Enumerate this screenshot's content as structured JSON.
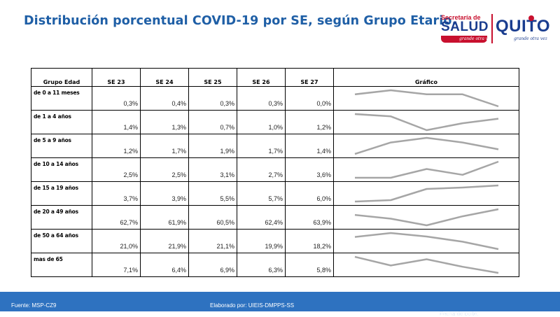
{
  "title": "Distribución porcentual COVID-19 por SE, según Grupo Etario.",
  "logos": {
    "salud_top": "Secretaría de",
    "salud_main": "SALUD",
    "salud_tag": "grande otra vez",
    "quito_main": "QUITO",
    "quito_tag": "grande otra vez"
  },
  "table": {
    "headers": [
      "Grupo Edad",
      "SE 23",
      "SE 24",
      "SE 25",
      "SE 26",
      "SE 27",
      "Gráfico"
    ],
    "rows": [
      {
        "label": "de 0 a 11 meses",
        "values": [
          "0,3%",
          "0,4%",
          "0,3%",
          "0,3%",
          "0,0%"
        ]
      },
      {
        "label": "de 1 a 4 años",
        "values": [
          "1,4%",
          "1,3%",
          "0,7%",
          "1,0%",
          "1,2%"
        ]
      },
      {
        "label": "de 5 a 9 años",
        "values": [
          "1,2%",
          "1,7%",
          "1,9%",
          "1,7%",
          "1,4%"
        ]
      },
      {
        "label": "de 10 a 14 años",
        "values": [
          "2,5%",
          "2,5%",
          "3,1%",
          "2,7%",
          "3,6%"
        ]
      },
      {
        "label": "de 15 a 19 años",
        "values": [
          "3,7%",
          "3,9%",
          "5,5%",
          "5,7%",
          "6,0%"
        ]
      },
      {
        "label": "de 20 a 49 años",
        "values": [
          "62,7%",
          "61,9%",
          "60,5%",
          "62,4%",
          "63,9%"
        ]
      },
      {
        "label": "de 50 a 64 años",
        "values": [
          "21,0%",
          "21,9%",
          "21,1%",
          "19,9%",
          "18,2%"
        ]
      },
      {
        "label": "mas de 65",
        "values": [
          "7,1%",
          "6,4%",
          "6,9%",
          "6,3%",
          "5,8%"
        ]
      }
    ]
  },
  "chart_data": {
    "type": "table",
    "title": "Distribución porcentual COVID-19 por SE, según Grupo Etario.",
    "categories": [
      "SE 23",
      "SE 24",
      "SE 25",
      "SE 26",
      "SE 27"
    ],
    "series": [
      {
        "name": "de 0 a 11 meses",
        "values": [
          0.3,
          0.4,
          0.3,
          0.3,
          0.0
        ]
      },
      {
        "name": "de 1 a 4 años",
        "values": [
          1.4,
          1.3,
          0.7,
          1.0,
          1.2
        ]
      },
      {
        "name": "de 5 a 9 años",
        "values": [
          1.2,
          1.7,
          1.9,
          1.7,
          1.4
        ]
      },
      {
        "name": "de 10 a 14 años",
        "values": [
          2.5,
          2.5,
          3.1,
          2.7,
          3.6
        ]
      },
      {
        "name": "de 15 a 19 años",
        "values": [
          3.7,
          3.9,
          5.5,
          5.7,
          6.0
        ]
      },
      {
        "name": "de 20 a 49 años",
        "values": [
          62.7,
          61.9,
          60.5,
          62.4,
          63.9
        ]
      },
      {
        "name": "de 50 a 64 años",
        "values": [
          21.0,
          21.9,
          21.1,
          19.9,
          18.2
        ]
      },
      {
        "name": "mas de 65",
        "values": [
          7.1,
          6.4,
          6.9,
          6.3,
          5.8
        ]
      }
    ],
    "sparkline_color": "#a6a6a6"
  },
  "footer": {
    "source": "Fuente: MSP-CZ9",
    "prepared_by": "Elaborado por: UIEIS-DMPPS-SS",
    "cutoff_label": "Fecha de corte:",
    "cutoff_date": "11 de julio de 2021"
  },
  "colors": {
    "title": "#1f5fa6",
    "footer_bg": "#2e72c0",
    "brand_blue": "#1a3d8f",
    "brand_red": "#c8102e"
  }
}
